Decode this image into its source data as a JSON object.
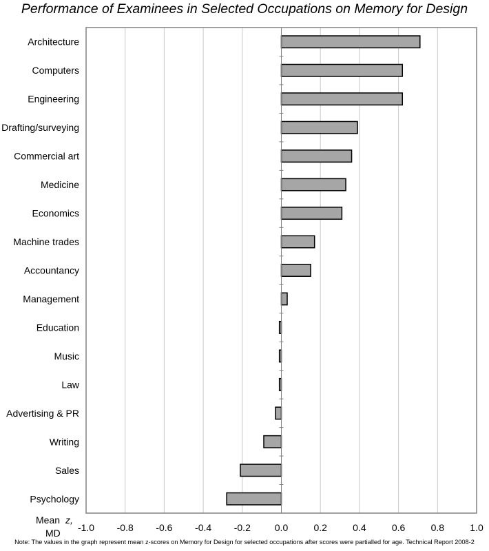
{
  "chart_data": {
    "type": "bar",
    "orientation": "horizontal",
    "title": "Performance of Examinees in Selected Occupations on Memory for Design",
    "xlabel": "Mean z, MD",
    "xlabel_parts": {
      "mean": "Mean",
      "var": "z,",
      "md": "MD"
    },
    "xlim": [
      -1.0,
      1.0
    ],
    "xticks": [
      "-1.0",
      "-0.8",
      "-0.6",
      "-0.4",
      "-0.2",
      "0.0",
      "0.2",
      "0.4",
      "0.6",
      "0.8",
      "1.0"
    ],
    "grid": "vertical",
    "categories": [
      "Architecture",
      "Computers",
      "Engineering",
      "Drafting/surveying",
      "Commercial art",
      "Medicine",
      "Economics",
      "Machine trades",
      "Accountancy",
      "Management",
      "Education",
      "Music",
      "Law",
      "Advertising & PR",
      "Writing",
      "Sales",
      "Psychology"
    ],
    "values": [
      0.71,
      0.62,
      0.62,
      0.39,
      0.36,
      0.33,
      0.31,
      0.17,
      0.15,
      0.03,
      -0.01,
      -0.01,
      -0.01,
      -0.03,
      -0.09,
      -0.21,
      -0.28
    ],
    "bar_color": "#a6a6a6",
    "note": "Note:  The values in the graph represent mean z-scores on Memory for Design for selected occupations after scores were partialled for age. Technical Report 2008-2"
  }
}
